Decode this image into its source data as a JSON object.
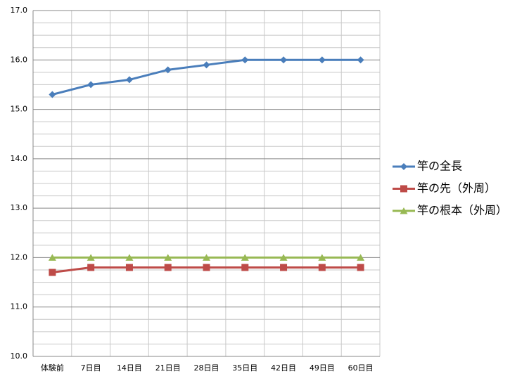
{
  "chart_data": {
    "type": "line",
    "categories": [
      "体験前",
      "7日目",
      "14日目",
      "21日目",
      "28日目",
      "35日目",
      "42日目",
      "49日目",
      "60日目"
    ],
    "series": [
      {
        "name": "竿の全長",
        "color": "#4a7ebb",
        "marker": "diamond",
        "values": [
          15.3,
          15.5,
          15.6,
          15.8,
          15.9,
          16.0,
          16.0,
          16.0,
          16.0
        ]
      },
      {
        "name": "竿の先（外周）",
        "color": "#be4b48",
        "marker": "square",
        "values": [
          11.7,
          11.8,
          11.8,
          11.8,
          11.8,
          11.8,
          11.8,
          11.8,
          11.8
        ]
      },
      {
        "name": "竿の根本（外周）",
        "color": "#98b954",
        "marker": "triangle",
        "values": [
          12.0,
          12.0,
          12.0,
          12.0,
          12.0,
          12.0,
          12.0,
          12.0,
          12.0
        ]
      }
    ],
    "ylim": [
      10,
      17
    ],
    "yticks": [
      {
        "value": 10,
        "label": "10.0"
      },
      {
        "value": 11,
        "label": "11.0"
      },
      {
        "value": 12,
        "label": "12.0"
      },
      {
        "value": 13,
        "label": "13.0"
      },
      {
        "value": 14,
        "label": "14.0"
      },
      {
        "value": 15,
        "label": "15.0"
      },
      {
        "value": 16,
        "label": "16.0"
      },
      {
        "value": 17,
        "label": "17.0"
      }
    ],
    "grid": true,
    "legend": "right"
  }
}
